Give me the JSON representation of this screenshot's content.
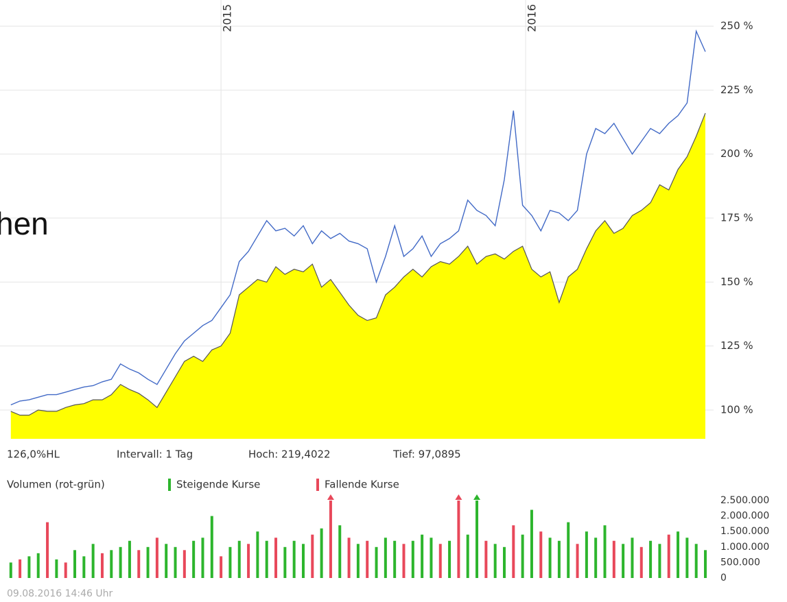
{
  "heading": "hen",
  "info": [
    "126,0%HL",
    "Intervall: 1 Tag",
    "Hoch: 219,4022",
    "Tief: 97,0895"
  ],
  "timestamp": "09.08.2016 14:46 Uhr",
  "chart_data": [
    {
      "type": "line",
      "x": [
        2014.31,
        2014.34,
        2014.37,
        2014.4,
        2014.43,
        2014.46,
        2014.49,
        2014.52,
        2014.55,
        2014.58,
        2014.61,
        2014.64,
        2014.67,
        2014.7,
        2014.73,
        2014.76,
        2014.79,
        2014.82,
        2014.85,
        2014.88,
        2014.91,
        2014.94,
        2014.97,
        2015,
        2015.03,
        2015.06,
        2015.09,
        2015.12,
        2015.15,
        2015.18,
        2015.21,
        2015.24,
        2015.27,
        2015.3,
        2015.33,
        2015.36,
        2015.39,
        2015.42,
        2015.45,
        2015.48,
        2015.51,
        2015.54,
        2015.57,
        2015.6,
        2015.63,
        2015.66,
        2015.69,
        2015.72,
        2015.75,
        2015.78,
        2015.81,
        2015.84,
        2015.87,
        2015.9,
        2015.93,
        2015.96,
        2015.99,
        2016.02,
        2016.05,
        2016.08,
        2016.11,
        2016.14,
        2016.17,
        2016.2,
        2016.23,
        2016.26,
        2016.29,
        2016.32,
        2016.35,
        2016.38,
        2016.41,
        2016.44,
        2016.47,
        2016.5,
        2016.53,
        2016.56,
        2016.59
      ],
      "xlim": [
        2014.306,
        2016.617
      ],
      "xticks": [
        2015,
        2016
      ],
      "ylim": [
        88.75,
        260.2
      ],
      "yticks": [
        {
          "value": 100,
          "label": "100 %"
        },
        {
          "value": 125,
          "label": "125 %"
        },
        {
          "value": 150,
          "label": "150 %"
        },
        {
          "value": 175,
          "label": "175 %"
        },
        {
          "value": 200,
          "label": "200 %"
        },
        {
          "value": 225,
          "label": "225 %"
        },
        {
          "value": 250,
          "label": "250 %"
        }
      ],
      "grid": true,
      "series": [
        {
          "color": "#ffff00",
          "area": true,
          "values": [
            99.5,
            98,
            98,
            100,
            99.5,
            99.5,
            101,
            102,
            102.5,
            104,
            104,
            106,
            110,
            108,
            106.5,
            104,
            101,
            107,
            113,
            119,
            121,
            119,
            123.5,
            125,
            130,
            145,
            148,
            151,
            150,
            156,
            153,
            155,
            154,
            157,
            148,
            151,
            146,
            141,
            137,
            135,
            136,
            145,
            148,
            152,
            155,
            152,
            156,
            158,
            157,
            160,
            164,
            157,
            160,
            161,
            159,
            162,
            164,
            155,
            152,
            154,
            142,
            152,
            155,
            163,
            170,
            174,
            169,
            171,
            176,
            178,
            181,
            188,
            186,
            194,
            199,
            207,
            216
          ]
        },
        {
          "color": "#4169c6",
          "values": [
            102,
            103.5,
            104,
            105,
            106,
            106,
            107,
            108,
            109,
            109.5,
            111,
            112,
            118,
            116,
            114.5,
            112,
            110,
            116,
            122,
            127,
            130,
            133,
            135,
            140,
            145,
            158,
            162,
            168,
            174,
            170,
            171,
            168,
            172,
            165,
            170,
            167,
            169,
            166,
            165,
            163,
            150,
            160,
            172,
            160,
            163,
            168,
            160,
            165,
            167,
            170,
            182,
            178,
            176,
            172,
            190,
            217,
            180,
            176,
            170,
            178,
            177,
            174,
            178,
            200,
            210,
            208,
            212,
            206,
            200,
            205,
            210,
            208,
            212,
            215,
            220,
            248,
            240
          ]
        }
      ]
    },
    {
      "type": "bar",
      "title": "Volumen (rot-grün)",
      "ylim": [
        0,
        2500000
      ],
      "yticks": [
        0,
        {
          "value": 500000,
          "label": "500.000"
        },
        {
          "value": 1000000,
          "label": "1.000.000"
        },
        {
          "value": 1500000,
          "label": "1.500.000"
        },
        {
          "value": 2000000,
          "label": "2.000.000"
        },
        {
          "value": 2500000,
          "label": "2.500.000"
        }
      ],
      "series": [
        {
          "name": "Steigende Kurse",
          "color": "#2db52d",
          "values": [
            500000,
            null,
            700000,
            800000,
            null,
            600000,
            null,
            900000,
            700000,
            1100000,
            null,
            900000,
            1000000,
            1200000,
            null,
            1000000,
            null,
            1100000,
            1000000,
            null,
            1200000,
            1300000,
            2000000,
            null,
            1000000,
            1200000,
            null,
            1500000,
            1200000,
            null,
            1000000,
            1200000,
            1100000,
            null,
            1600000,
            null,
            1700000,
            null,
            1100000,
            null,
            1000000,
            1300000,
            1200000,
            null,
            1200000,
            1400000,
            1300000,
            null,
            1200000,
            null,
            1400000,
            2500000,
            null,
            1100000,
            1000000,
            null,
            1400000,
            2200000,
            null,
            1300000,
            1200000,
            1800000,
            null,
            1500000,
            1300000,
            1700000,
            null,
            1100000,
            1300000,
            null,
            1200000,
            1100000,
            null,
            1500000,
            1300000,
            1100000,
            900000
          ]
        },
        {
          "name": "Fallende Kurse",
          "color": "#e8485a",
          "values": [
            null,
            600000,
            null,
            null,
            1800000,
            null,
            500000,
            null,
            null,
            null,
            800000,
            null,
            null,
            null,
            900000,
            null,
            1300000,
            null,
            null,
            900000,
            null,
            null,
            null,
            700000,
            null,
            null,
            1100000,
            null,
            null,
            1300000,
            null,
            null,
            null,
            1400000,
            null,
            2500000,
            null,
            1300000,
            null,
            1200000,
            null,
            null,
            null,
            1100000,
            null,
            null,
            null,
            1100000,
            null,
            2500000,
            null,
            null,
            1200000,
            null,
            null,
            1700000,
            null,
            null,
            1500000,
            null,
            null,
            null,
            1100000,
            null,
            null,
            null,
            1200000,
            null,
            null,
            1000000,
            null,
            null,
            1400000,
            null,
            null,
            null,
            null
          ]
        }
      ]
    }
  ]
}
